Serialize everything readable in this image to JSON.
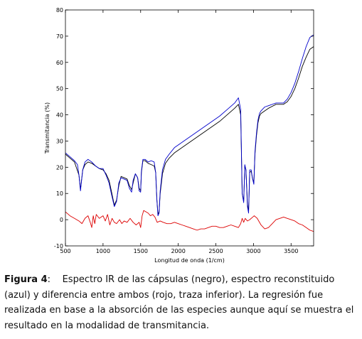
{
  "caption": {
    "label": "Figura 4",
    "separator": ":",
    "text": "Espectro IR de las cápsulas (negro), espectro reconstituido (azul) y diferencia entre ambos (rojo, traza inferior). La regresión fue realizada en base a la absorción de las especies aunque aquí se muestra el resultado en la modalidad de transmitancia."
  },
  "chart_data": {
    "type": "line",
    "title": "",
    "xlabel": "Longitud de onda (1/cm)",
    "ylabel": "Transmitancia (%)",
    "xlim": [
      500,
      3800
    ],
    "ylim": [
      -10,
      80
    ],
    "xticks": [
      500,
      1000,
      1500,
      2000,
      2500,
      3000,
      3500
    ],
    "yticks": [
      -10,
      0,
      10,
      20,
      30,
      40,
      50,
      60,
      70,
      80
    ],
    "grid": false,
    "legend": "none",
    "series": [
      {
        "color": "#000000",
        "points": [
          [
            500,
            25
          ],
          [
            560,
            23.5
          ],
          [
            620,
            22
          ],
          [
            680,
            17
          ],
          [
            700,
            11.5
          ],
          [
            730,
            19
          ],
          [
            760,
            21
          ],
          [
            800,
            22
          ],
          [
            850,
            21.5
          ],
          [
            900,
            20.5
          ],
          [
            950,
            19.5
          ],
          [
            1000,
            19
          ],
          [
            1040,
            17.5
          ],
          [
            1080,
            15
          ],
          [
            1110,
            11
          ],
          [
            1150,
            5.5
          ],
          [
            1180,
            7.5
          ],
          [
            1210,
            13
          ],
          [
            1240,
            16.5
          ],
          [
            1280,
            16
          ],
          [
            1320,
            15.5
          ],
          [
            1350,
            13
          ],
          [
            1380,
            11.5
          ],
          [
            1400,
            14
          ],
          [
            1430,
            17.5
          ],
          [
            1460,
            16
          ],
          [
            1480,
            12
          ],
          [
            1500,
            11
          ],
          [
            1510,
            18
          ],
          [
            1530,
            22.5
          ],
          [
            1560,
            22.5
          ],
          [
            1600,
            21.5
          ],
          [
            1640,
            21
          ],
          [
            1680,
            20.5
          ],
          [
            1700,
            18
          ],
          [
            1715,
            8
          ],
          [
            1730,
            2
          ],
          [
            1745,
            3
          ],
          [
            1760,
            10
          ],
          [
            1790,
            17.5
          ],
          [
            1830,
            21.5
          ],
          [
            1880,
            23.5
          ],
          [
            1950,
            25.5
          ],
          [
            2050,
            27.5
          ],
          [
            2150,
            29.5
          ],
          [
            2250,
            31.5
          ],
          [
            2350,
            33.5
          ],
          [
            2450,
            35.5
          ],
          [
            2550,
            37.5
          ],
          [
            2650,
            40
          ],
          [
            2750,
            42.5
          ],
          [
            2800,
            44
          ],
          [
            2830,
            40
          ],
          [
            2850,
            10
          ],
          [
            2870,
            7
          ],
          [
            2885,
            20.5
          ],
          [
            2900,
            19
          ],
          [
            2920,
            6
          ],
          [
            2935,
            3
          ],
          [
            2950,
            18
          ],
          [
            2970,
            18.5
          ],
          [
            2985,
            16
          ],
          [
            3005,
            14
          ],
          [
            3020,
            25
          ],
          [
            3040,
            32
          ],
          [
            3060,
            37
          ],
          [
            3080,
            39.5
          ],
          [
            3100,
            40.5
          ],
          [
            3150,
            41.5
          ],
          [
            3200,
            42.5
          ],
          [
            3300,
            44
          ],
          [
            3400,
            44
          ],
          [
            3450,
            45
          ],
          [
            3500,
            47
          ],
          [
            3550,
            50
          ],
          [
            3600,
            54
          ],
          [
            3650,
            58.5
          ],
          [
            3700,
            62
          ],
          [
            3750,
            65
          ],
          [
            3800,
            66
          ]
        ]
      },
      {
        "color": "#0000cc",
        "points": [
          [
            500,
            25.5
          ],
          [
            560,
            24
          ],
          [
            620,
            22.5
          ],
          [
            660,
            21
          ],
          [
            680,
            17
          ],
          [
            700,
            11
          ],
          [
            730,
            19
          ],
          [
            760,
            22
          ],
          [
            800,
            23
          ],
          [
            850,
            22
          ],
          [
            900,
            20.5
          ],
          [
            950,
            19.5
          ],
          [
            1000,
            19.5
          ],
          [
            1040,
            17
          ],
          [
            1080,
            14
          ],
          [
            1110,
            10
          ],
          [
            1150,
            5
          ],
          [
            1180,
            7
          ],
          [
            1210,
            14
          ],
          [
            1240,
            16
          ],
          [
            1280,
            15.5
          ],
          [
            1320,
            15
          ],
          [
            1350,
            12
          ],
          [
            1380,
            10.5
          ],
          [
            1400,
            15
          ],
          [
            1430,
            17.5
          ],
          [
            1460,
            16
          ],
          [
            1480,
            11
          ],
          [
            1500,
            10.5
          ],
          [
            1510,
            18.5
          ],
          [
            1530,
            23
          ],
          [
            1560,
            23
          ],
          [
            1600,
            22
          ],
          [
            1640,
            22.5
          ],
          [
            1680,
            22
          ],
          [
            1700,
            18
          ],
          [
            1715,
            8
          ],
          [
            1730,
            1.5
          ],
          [
            1745,
            2.5
          ],
          [
            1760,
            11
          ],
          [
            1790,
            19
          ],
          [
            1830,
            23
          ],
          [
            1880,
            25
          ],
          [
            1950,
            27.5
          ],
          [
            2050,
            29.5
          ],
          [
            2150,
            31.5
          ],
          [
            2250,
            33.5
          ],
          [
            2350,
            35.5
          ],
          [
            2450,
            37.5
          ],
          [
            2550,
            39.5
          ],
          [
            2650,
            42
          ],
          [
            2750,
            44.5
          ],
          [
            2800,
            46.5
          ],
          [
            2830,
            42
          ],
          [
            2850,
            10
          ],
          [
            2870,
            6.5
          ],
          [
            2885,
            21
          ],
          [
            2900,
            19
          ],
          [
            2920,
            5
          ],
          [
            2935,
            2.5
          ],
          [
            2950,
            19
          ],
          [
            2970,
            19
          ],
          [
            2985,
            16
          ],
          [
            3005,
            13.5
          ],
          [
            3020,
            26
          ],
          [
            3040,
            33
          ],
          [
            3060,
            38
          ],
          [
            3080,
            40.5
          ],
          [
            3100,
            41.5
          ],
          [
            3150,
            43
          ],
          [
            3200,
            43.5
          ],
          [
            3300,
            44.5
          ],
          [
            3400,
            44.5
          ],
          [
            3450,
            46
          ],
          [
            3500,
            48.5
          ],
          [
            3550,
            52
          ],
          [
            3600,
            56.5
          ],
          [
            3650,
            61.5
          ],
          [
            3700,
            66
          ],
          [
            3750,
            69.5
          ],
          [
            3800,
            70.5
          ]
        ]
      },
      {
        "color": "#dd0000",
        "points": [
          [
            500,
            3
          ],
          [
            560,
            1.5
          ],
          [
            620,
            0.5
          ],
          [
            680,
            -0.5
          ],
          [
            720,
            -1.5
          ],
          [
            760,
            0.5
          ],
          [
            800,
            1.5
          ],
          [
            830,
            -1
          ],
          [
            850,
            -3
          ],
          [
            870,
            1.5
          ],
          [
            890,
            -1.5
          ],
          [
            910,
            2
          ],
          [
            950,
            0.5
          ],
          [
            1000,
            1.5
          ],
          [
            1030,
            -0.5
          ],
          [
            1060,
            2
          ],
          [
            1090,
            -2
          ],
          [
            1120,
            0.5
          ],
          [
            1150,
            -1
          ],
          [
            1180,
            -1.5
          ],
          [
            1220,
            0
          ],
          [
            1250,
            -1.5
          ],
          [
            1280,
            -0.5
          ],
          [
            1320,
            -1
          ],
          [
            1360,
            0.5
          ],
          [
            1400,
            -1
          ],
          [
            1440,
            -2
          ],
          [
            1480,
            -1
          ],
          [
            1500,
            -3
          ],
          [
            1520,
            1.5
          ],
          [
            1540,
            3.5
          ],
          [
            1570,
            3
          ],
          [
            1600,
            2.5
          ],
          [
            1630,
            1.5
          ],
          [
            1660,
            2
          ],
          [
            1690,
            1
          ],
          [
            1720,
            -1
          ],
          [
            1760,
            -0.5
          ],
          [
            1800,
            -1
          ],
          [
            1850,
            -1.5
          ],
          [
            1900,
            -1.5
          ],
          [
            1950,
            -1
          ],
          [
            2000,
            -1.5
          ],
          [
            2050,
            -2
          ],
          [
            2100,
            -2.5
          ],
          [
            2150,
            -3
          ],
          [
            2200,
            -3.5
          ],
          [
            2250,
            -4
          ],
          [
            2300,
            -3.5
          ],
          [
            2350,
            -3.5
          ],
          [
            2400,
            -3
          ],
          [
            2450,
            -2.5
          ],
          [
            2500,
            -2.5
          ],
          [
            2550,
            -3
          ],
          [
            2600,
            -3
          ],
          [
            2650,
            -2.5
          ],
          [
            2700,
            -2
          ],
          [
            2750,
            -2.5
          ],
          [
            2800,
            -3
          ],
          [
            2830,
            -1.5
          ],
          [
            2850,
            0.5
          ],
          [
            2870,
            -1
          ],
          [
            2890,
            0.5
          ],
          [
            2920,
            -0.5
          ],
          [
            2950,
            0
          ],
          [
            2990,
            1
          ],
          [
            3010,
            1.5
          ],
          [
            3050,
            0.5
          ],
          [
            3100,
            -2
          ],
          [
            3150,
            -3.5
          ],
          [
            3200,
            -3
          ],
          [
            3250,
            -1.5
          ],
          [
            3300,
            0
          ],
          [
            3350,
            0.5
          ],
          [
            3400,
            1
          ],
          [
            3450,
            0.5
          ],
          [
            3500,
            0
          ],
          [
            3550,
            -0.5
          ],
          [
            3600,
            -1.5
          ],
          [
            3650,
            -2
          ],
          [
            3700,
            -3
          ],
          [
            3750,
            -4
          ],
          [
            3800,
            -4.5
          ]
        ]
      }
    ]
  }
}
